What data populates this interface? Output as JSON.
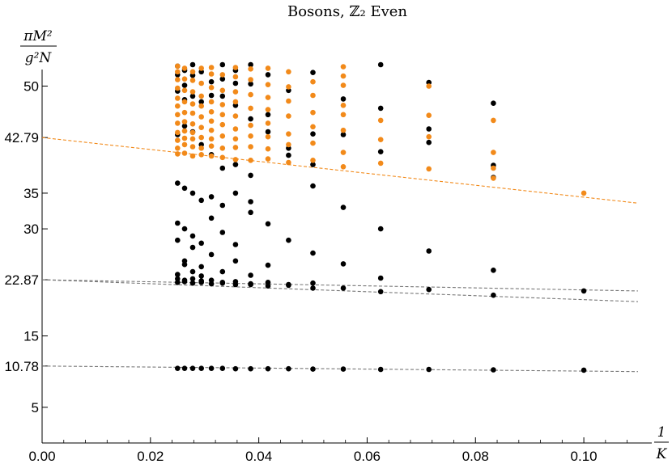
{
  "chart_data": {
    "type": "scatter",
    "title": "Bosons, ℤ₂ Even",
    "ylabel": {
      "numerator": "πM²",
      "denominator": "g²N"
    },
    "xlabel": {
      "numerator": "1",
      "denominator": "K"
    },
    "xlim": [
      0,
      0.11
    ],
    "ylim": [
      0,
      53
    ],
    "xticks": [
      "0.00",
      "0.02",
      "0.04",
      "0.06",
      "0.08",
      "0.10"
    ],
    "xtick_values": [
      0,
      0.02,
      0.04,
      0.06,
      0.08,
      0.1
    ],
    "yticks": [
      "5",
      "10.78",
      "15",
      "22.87",
      "30",
      "35",
      "42.79",
      "50"
    ],
    "ytick_values": [
      5,
      10.78,
      15,
      22.87,
      30,
      35,
      42.79,
      50
    ],
    "colors": {
      "black": "#000000",
      "orange": "#f28a1a",
      "fit_orange": "#f28a1a",
      "fit_gray": "#777777"
    },
    "fits": [
      {
        "color": "orange",
        "y0": 42.79,
        "y_at_011": 33.6
      },
      {
        "color": "gray",
        "y0": 22.87,
        "y_at_011": 21.3
      },
      {
        "color": "gray",
        "y0": 22.87,
        "y_at_011": 19.8
      },
      {
        "color": "gray",
        "y0": 10.78,
        "y_at_011": 10.0
      }
    ],
    "series": [
      {
        "color": "black",
        "points": [
          [
            0.1,
            10.2
          ],
          [
            0.0833,
            10.25
          ],
          [
            0.0714,
            10.3
          ],
          [
            0.0625,
            10.3
          ],
          [
            0.0556,
            10.35
          ],
          [
            0.05,
            10.35
          ],
          [
            0.0455,
            10.4
          ],
          [
            0.0417,
            10.4
          ],
          [
            0.0385,
            10.4
          ],
          [
            0.0357,
            10.4
          ],
          [
            0.0333,
            10.45
          ],
          [
            0.03125,
            10.45
          ],
          [
            0.0294,
            10.45
          ],
          [
            0.0278,
            10.45
          ],
          [
            0.0263,
            10.45
          ],
          [
            0.025,
            10.45
          ],
          [
            0.1,
            21.3
          ],
          [
            0.0833,
            20.7
          ],
          [
            0.0714,
            21.5
          ],
          [
            0.0625,
            21.2
          ],
          [
            0.0556,
            21.7
          ],
          [
            0.05,
            21.7
          ],
          [
            0.0455,
            22.1
          ],
          [
            0.0417,
            22.0
          ],
          [
            0.0385,
            22.2
          ],
          [
            0.0357,
            22.2
          ],
          [
            0.0333,
            22.4
          ],
          [
            0.03125,
            22.3
          ],
          [
            0.0294,
            22.5
          ],
          [
            0.0278,
            22.4
          ],
          [
            0.0263,
            22.6
          ],
          [
            0.025,
            22.5
          ],
          [
            0.0833,
            24.2
          ],
          [
            0.0625,
            23.1
          ],
          [
            0.0556,
            25.1
          ],
          [
            0.05,
            22.4
          ],
          [
            0.0455,
            22.2
          ],
          [
            0.0417,
            22.5
          ],
          [
            0.0385,
            22.3
          ],
          [
            0.0357,
            22.6
          ],
          [
            0.0333,
            22.5
          ],
          [
            0.03125,
            22.8
          ],
          [
            0.0294,
            22.7
          ],
          [
            0.0278,
            23.0
          ],
          [
            0.0263,
            22.8
          ],
          [
            0.025,
            23.0
          ],
          [
            0.0714,
            26.9
          ],
          [
            0.05,
            26.6
          ],
          [
            0.0455,
            28.4
          ],
          [
            0.0417,
            24.9
          ],
          [
            0.0385,
            23.5
          ],
          [
            0.0357,
            25.5
          ],
          [
            0.0333,
            24.0
          ],
          [
            0.03125,
            26.4
          ],
          [
            0.0294,
            24.7
          ],
          [
            0.0278,
            27.4
          ],
          [
            0.0263,
            25.5
          ],
          [
            0.025,
            28.4
          ],
          [
            0.0263,
            25.0
          ],
          [
            0.025,
            23.6
          ],
          [
            0.0294,
            23.4
          ],
          [
            0.0278,
            24.0
          ],
          [
            0.0625,
            30.0
          ],
          [
            0.0417,
            30.7
          ],
          [
            0.0385,
            32.3
          ],
          [
            0.0357,
            27.8
          ],
          [
            0.0333,
            29.5
          ],
          [
            0.03125,
            31.5
          ],
          [
            0.0294,
            28.0
          ],
          [
            0.0278,
            29.0
          ],
          [
            0.0263,
            30.0
          ],
          [
            0.025,
            30.8
          ],
          [
            0.0556,
            33.0
          ],
          [
            0.05,
            36.0
          ],
          [
            0.0385,
            33.8
          ],
          [
            0.0357,
            35.0
          ],
          [
            0.0333,
            33.3
          ],
          [
            0.03125,
            34.5
          ],
          [
            0.0294,
            34.0
          ],
          [
            0.0278,
            35.0
          ],
          [
            0.0263,
            35.7
          ],
          [
            0.025,
            36.4
          ],
          [
            0.0833,
            37.2
          ],
          [
            0.0714,
            42.1
          ],
          [
            0.0625,
            40.8
          ],
          [
            0.0556,
            43.2
          ],
          [
            0.05,
            39.0
          ],
          [
            0.0455,
            40.3
          ],
          [
            0.0417,
            43.6
          ],
          [
            0.0385,
            37.5
          ],
          [
            0.0357,
            39.0
          ],
          [
            0.0333,
            38.5
          ],
          [
            0.03125,
            40.4
          ],
          [
            0.0294,
            41.8
          ],
          [
            0.0278,
            43.6
          ],
          [
            0.0263,
            44.4
          ],
          [
            0.025,
            43.2
          ],
          [
            0.0833,
            38.9
          ],
          [
            0.0714,
            44.0
          ],
          [
            0.0625,
            46.9
          ],
          [
            0.0556,
            48.2
          ],
          [
            0.05,
            43.3
          ],
          [
            0.0455,
            41.3
          ],
          [
            0.0417,
            46.0
          ],
          [
            0.0385,
            45.4
          ],
          [
            0.0357,
            47.3
          ],
          [
            0.0333,
            48.6
          ],
          [
            0.03125,
            50.6
          ],
          [
            0.0294,
            52.0
          ],
          [
            0.0278,
            51.5
          ],
          [
            0.0263,
            52.2
          ],
          [
            0.025,
            52.8
          ],
          [
            0.0833,
            47.6
          ],
          [
            0.0714,
            50.5
          ],
          [
            0.0625,
            53.0
          ],
          [
            0.05,
            51.9
          ],
          [
            0.0455,
            49.4
          ],
          [
            0.0417,
            51.6
          ],
          [
            0.0385,
            50.3
          ],
          [
            0.0357,
            52.2
          ],
          [
            0.0333,
            51.0
          ],
          [
            0.03125,
            48.7
          ],
          [
            0.0294,
            47.8
          ],
          [
            0.0278,
            53.0
          ],
          [
            0.0263,
            50.1
          ],
          [
            0.025,
            49.3
          ],
          [
            0.0385,
            53.0
          ],
          [
            0.0357,
            50.4
          ],
          [
            0.0333,
            53.0
          ],
          [
            0.0278,
            48.6
          ],
          [
            0.0263,
            48.1
          ],
          [
            0.025,
            51.6
          ]
        ]
      },
      {
        "color": "orange",
        "points": [
          [
            0.1,
            35.0
          ],
          [
            0.0833,
            37.1
          ],
          [
            0.0833,
            40.7
          ],
          [
            0.0833,
            45.2
          ],
          [
            0.0833,
            38.5
          ],
          [
            0.0714,
            38.4
          ],
          [
            0.0714,
            42.9
          ],
          [
            0.0714,
            45.9
          ],
          [
            0.0714,
            50.0
          ],
          [
            0.0625,
            39.2
          ],
          [
            0.0625,
            42.5
          ],
          [
            0.0625,
            45.2
          ],
          [
            0.0556,
            38.7
          ],
          [
            0.0556,
            40.7
          ],
          [
            0.0556,
            43.8
          ],
          [
            0.0556,
            46.0
          ],
          [
            0.0556,
            47.3
          ],
          [
            0.0556,
            50.1
          ],
          [
            0.0556,
            51.4
          ],
          [
            0.0556,
            52.7
          ],
          [
            0.05,
            39.6
          ],
          [
            0.05,
            42.0
          ],
          [
            0.05,
            44.3
          ],
          [
            0.05,
            46.3
          ],
          [
            0.05,
            48.7
          ],
          [
            0.05,
            50.6
          ],
          [
            0.0455,
            39.3
          ],
          [
            0.0455,
            41.8
          ],
          [
            0.0455,
            43.3
          ],
          [
            0.0455,
            45.8
          ],
          [
            0.0455,
            47.9
          ],
          [
            0.0455,
            49.9
          ],
          [
            0.0455,
            52.0
          ],
          [
            0.0417,
            39.8
          ],
          [
            0.0417,
            41.2
          ],
          [
            0.0417,
            42.9
          ],
          [
            0.0417,
            44.8
          ],
          [
            0.0417,
            46.7
          ],
          [
            0.0417,
            48.4
          ],
          [
            0.0417,
            50.2
          ],
          [
            0.0417,
            52.5
          ],
          [
            0.0385,
            39.6
          ],
          [
            0.0385,
            41.5
          ],
          [
            0.0385,
            43.0
          ],
          [
            0.0385,
            44.5
          ],
          [
            0.0385,
            46.9
          ],
          [
            0.0385,
            48.8
          ],
          [
            0.0385,
            50.9
          ],
          [
            0.0385,
            52.4
          ],
          [
            0.0357,
            39.7
          ],
          [
            0.0357,
            41.4
          ],
          [
            0.0357,
            42.6
          ],
          [
            0.0357,
            44.0
          ],
          [
            0.0357,
            45.8
          ],
          [
            0.0357,
            47.8
          ],
          [
            0.0357,
            49.2
          ],
          [
            0.0357,
            51.3
          ],
          [
            0.0357,
            52.6
          ],
          [
            0.0333,
            40.0
          ],
          [
            0.0333,
            41.3
          ],
          [
            0.0333,
            43.0
          ],
          [
            0.0333,
            44.6
          ],
          [
            0.0333,
            46.0
          ],
          [
            0.0333,
            47.4
          ],
          [
            0.0333,
            49.4
          ],
          [
            0.0333,
            51.6
          ],
          [
            0.03125,
            40.2
          ],
          [
            0.03125,
            41.6
          ],
          [
            0.03125,
            42.6
          ],
          [
            0.03125,
            43.8
          ],
          [
            0.03125,
            45.1
          ],
          [
            0.03125,
            46.4
          ],
          [
            0.03125,
            47.8
          ],
          [
            0.03125,
            49.8
          ],
          [
            0.03125,
            51.7
          ],
          [
            0.03125,
            52.6
          ],
          [
            0.0294,
            40.4
          ],
          [
            0.0294,
            41.3
          ],
          [
            0.0294,
            42.8
          ],
          [
            0.0294,
            44.2
          ],
          [
            0.0294,
            45.7
          ],
          [
            0.0294,
            47.2
          ],
          [
            0.0294,
            48.6
          ],
          [
            0.0294,
            50.4
          ],
          [
            0.0294,
            52.5
          ],
          [
            0.0278,
            40.2
          ],
          [
            0.0278,
            41.5
          ],
          [
            0.0278,
            42.6
          ],
          [
            0.0278,
            43.5
          ],
          [
            0.0278,
            44.7
          ],
          [
            0.0278,
            46.2
          ],
          [
            0.0278,
            47.5
          ],
          [
            0.0278,
            49.2
          ],
          [
            0.0278,
            50.8
          ],
          [
            0.0278,
            52.0
          ],
          [
            0.0263,
            40.6
          ],
          [
            0.0263,
            41.8
          ],
          [
            0.0263,
            42.7
          ],
          [
            0.0263,
            43.7
          ],
          [
            0.0263,
            45.0
          ],
          [
            0.0263,
            46.3
          ],
          [
            0.0263,
            47.8
          ],
          [
            0.0263,
            49.4
          ],
          [
            0.0263,
            51.0
          ],
          [
            0.0263,
            52.5
          ],
          [
            0.025,
            40.5
          ],
          [
            0.025,
            41.3
          ],
          [
            0.025,
            42.4
          ],
          [
            0.025,
            43.5
          ],
          [
            0.025,
            44.8
          ],
          [
            0.025,
            46.0
          ],
          [
            0.025,
            47.2
          ],
          [
            0.025,
            48.3
          ],
          [
            0.025,
            49.7
          ],
          [
            0.025,
            50.9
          ],
          [
            0.025,
            52.0
          ],
          [
            0.025,
            52.8
          ]
        ]
      }
    ]
  }
}
